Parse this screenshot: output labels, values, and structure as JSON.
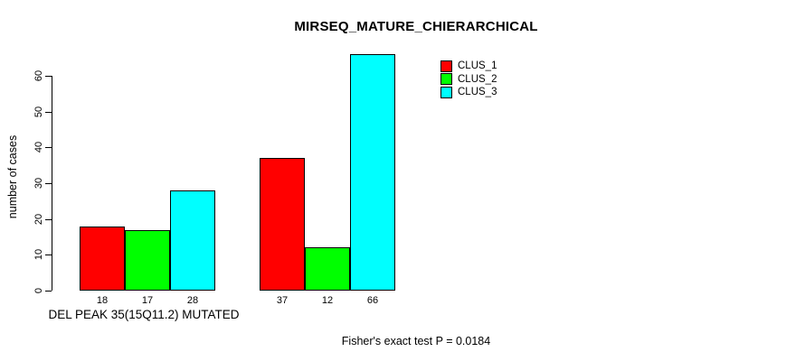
{
  "chart_data": {
    "type": "bar",
    "title": "MIRSEQ_MATURE_CHIERARCHICAL",
    "ylabel": "number of cases",
    "xlabel": "DEL PEAK 35(15Q11.2) MUTATED",
    "footnote": "Fisher's exact test P = 0.0184",
    "yticks": [
      0,
      10,
      20,
      30,
      40,
      50,
      60
    ],
    "ylim": [
      0,
      66
    ],
    "grid": false,
    "legend_position": "top-right",
    "bar_value_labels_shown": true,
    "series": [
      {
        "name": "CLUS_1",
        "color": "#FF0000",
        "values": [
          18,
          37
        ]
      },
      {
        "name": "CLUS_2",
        "color": "#00FF00",
        "values": [
          17,
          12
        ]
      },
      {
        "name": "CLUS_3",
        "color": "#00FFFF",
        "values": [
          28,
          66
        ]
      }
    ]
  }
}
